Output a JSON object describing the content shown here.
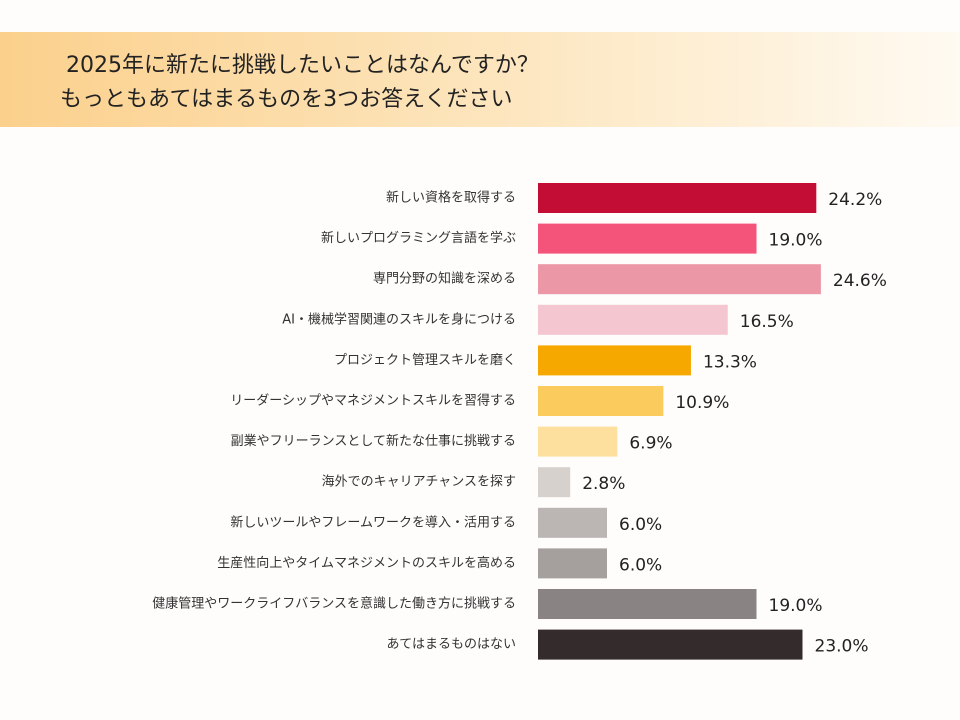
{
  "chart_data": {
    "type": "barh",
    "title": "2025年に新たに挑戦したいことはなんですか？",
    "subtitle": "もっともあてはまるものを3つお答えください",
    "categories": [
      "新しい資格を取得する",
      "新しいプログラミング言語を学ぶ",
      "専門分野の知識を深める",
      "AI・機械学習関連のスキルを身につける",
      "プロジェクト管理スキルを磨く",
      "リーダーシップやマネジメントスキルを習得する",
      "副業やフリーランスとして新たな仕事に挑戦する",
      "海外でのキャリアチャンスを探す",
      "新しいツールやフレームワークを導入・活用する",
      "生産性向上やタイムマネジメントのスキルを高める",
      "健康管理やワークライフバランスを意識した働き方に挑戦する",
      "あてはまるものはない"
    ],
    "values": [
      24.2,
      19.0,
      24.6,
      16.5,
      13.3,
      10.9,
      6.9,
      2.8,
      6.0,
      6.0,
      19.0,
      23.0
    ],
    "value_labels": [
      "24.2%",
      "19.0%",
      "24.6%",
      "16.5%",
      "13.3%",
      "10.9%",
      "6.9%",
      "2.8%",
      "6.0%",
      "6.0%",
      "19.0%",
      "23.0%"
    ],
    "colors": [
      "#c30d35",
      "#f5547a",
      "#ec97a5",
      "#f4c6d0",
      "#f6a800",
      "#fbcb5e",
      "#fde09d",
      "#d6d1cc",
      "#bbb5b3",
      "#a5a09e",
      "#8a8384",
      "#332b2c"
    ]
  }
}
